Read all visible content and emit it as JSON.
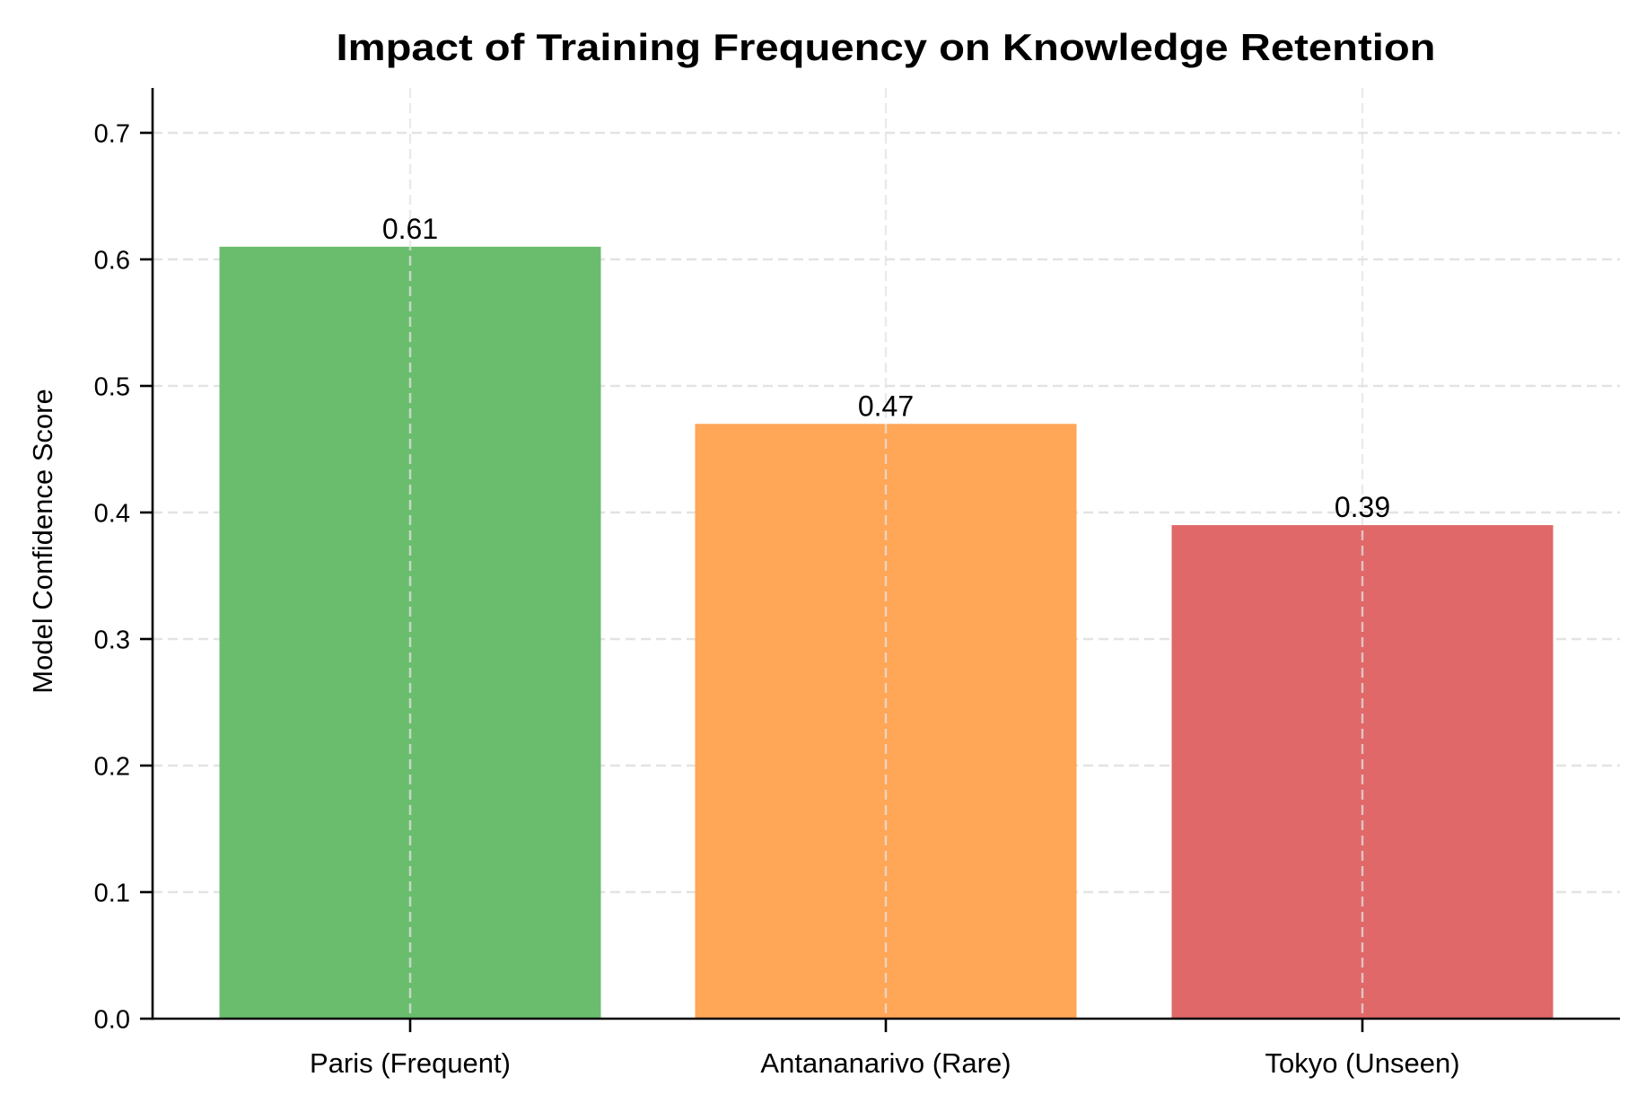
{
  "chart_data": {
    "type": "bar",
    "title": "Impact of Training Frequency on Knowledge Retention",
    "xlabel": "",
    "ylabel": "Model Confidence Score",
    "categories": [
      "Paris (Frequent)",
      "Antananarivo (Rare)",
      "Tokyo (Unseen)"
    ],
    "values": [
      0.61,
      0.47,
      0.39
    ],
    "value_labels": [
      "0.61",
      "0.47",
      "0.39"
    ],
    "colors": [
      "#6bbd6e",
      "#ffa657",
      "#e06868"
    ],
    "ylim": [
      0,
      0.735
    ],
    "yticks": [
      0.0,
      0.1,
      0.2,
      0.3,
      0.4,
      0.5,
      0.6,
      0.7
    ],
    "ytick_labels": [
      "0.0",
      "0.1",
      "0.2",
      "0.3",
      "0.4",
      "0.5",
      "0.6",
      "0.7"
    ],
    "grid": true,
    "grid_style": "dashed",
    "legend": null
  }
}
